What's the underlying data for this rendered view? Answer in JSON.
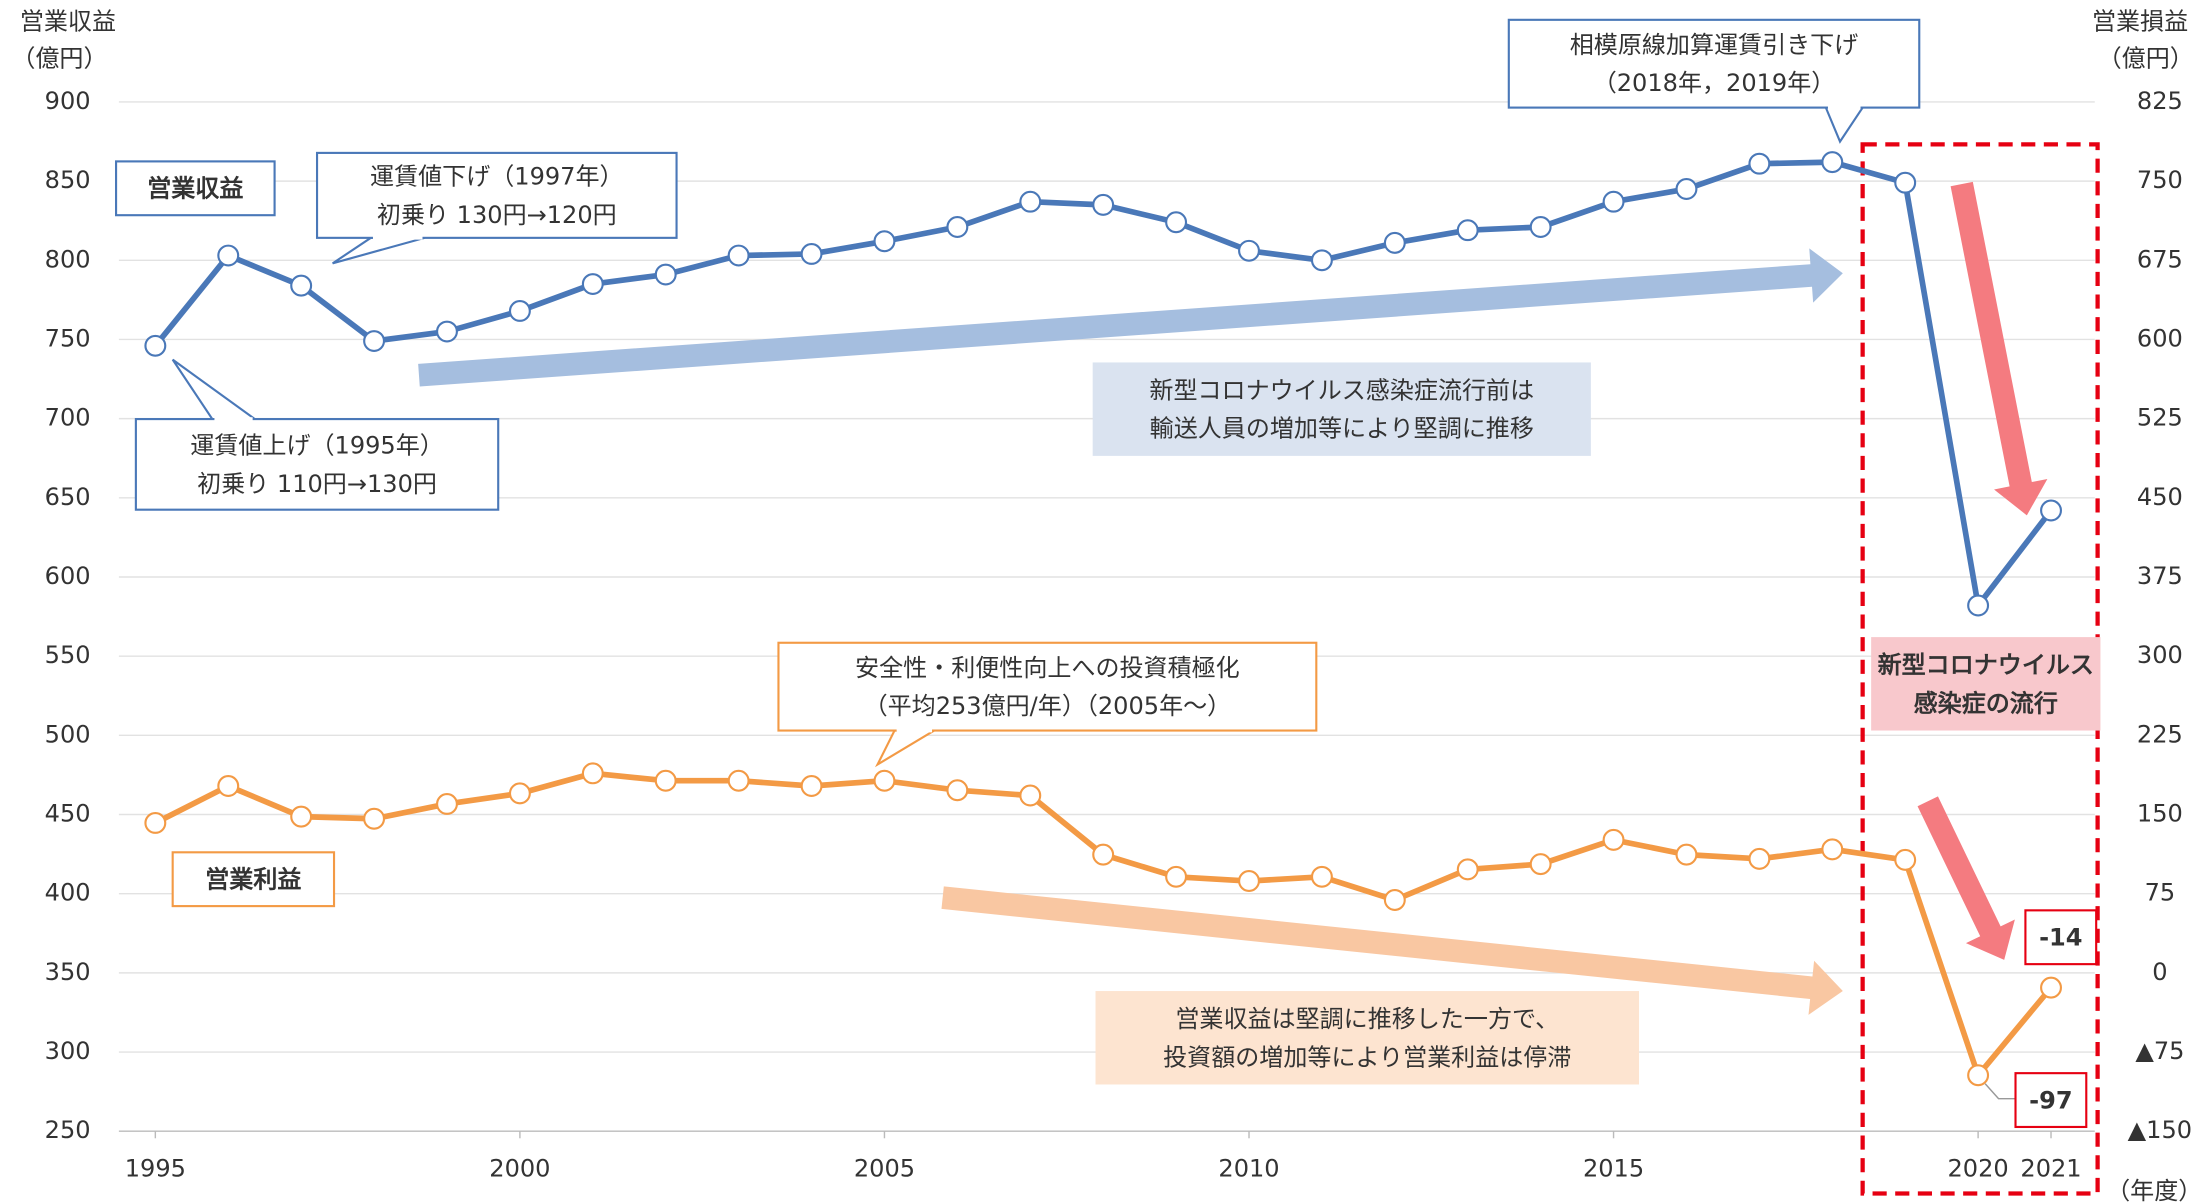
{
  "chart_data": {
    "type": "line",
    "y_label": [
      "営業収益",
      "（億円）"
    ],
    "y2_label": [
      "営業損益",
      "（億円）"
    ],
    "x_label": "（年度）",
    "x": [
      1995,
      1996,
      1997,
      1998,
      1999,
      2000,
      2001,
      2002,
      2003,
      2004,
      2005,
      2006,
      2007,
      2008,
      2009,
      2010,
      2011,
      2012,
      2013,
      2014,
      2015,
      2016,
      2017,
      2018,
      2019,
      2020,
      2021
    ],
    "xlim": [
      1994.5,
      2021.6
    ],
    "xticks": [
      1995,
      2000,
      2005,
      2010,
      2015,
      2020,
      2021
    ],
    "ylim": [
      250,
      900
    ],
    "yticks": [
      250,
      300,
      350,
      400,
      450,
      500,
      550,
      600,
      650,
      700,
      750,
      800,
      850,
      900
    ],
    "y2lim": [
      -150,
      825
    ],
    "y2ticks": [
      {
        "value": -150,
        "label": "▲150"
      },
      {
        "value": -75,
        "label": "▲75"
      },
      0,
      75,
      150,
      225,
      300,
      375,
      450,
      525,
      600,
      675,
      750,
      825
    ],
    "grid": true,
    "series": [
      {
        "name": "営業収益",
        "color": "#4a78b8",
        "axis": "y",
        "values": [
          746,
          803,
          784,
          749,
          755,
          768,
          785,
          791,
          803,
          804,
          812,
          821,
          837,
          835,
          824,
          806,
          800,
          811,
          819,
          821,
          837,
          845,
          861,
          862,
          849,
          582,
          642
        ]
      },
      {
        "name": "営業利益",
        "color": "#f39a45",
        "axis": "y2",
        "values": [
          142,
          177,
          148,
          146,
          160,
          170,
          189,
          182,
          182,
          177,
          182,
          173,
          168,
          112,
          91,
          87,
          91,
          69,
          98,
          103,
          126,
          112,
          108,
          117,
          107,
          -97,
          -14
        ]
      }
    ],
    "annotations": [
      {
        "lines": [
          "運賃値上げ（1995年）",
          "初乗り  110円→130円"
        ]
      },
      {
        "lines": [
          "運賃値下げ（1997年）",
          "初乗り  130円→120円"
        ]
      },
      {
        "lines": [
          "相模原線加算運賃引き下げ",
          "（2018年，2019年）"
        ]
      },
      {
        "lines": [
          "新型コロナウイルス感染症流行前は",
          "輸送人員の増加等により堅調に推移"
        ]
      },
      {
        "lines": [
          "安全性・利便性向上への投資積極化",
          "（平均253億円/年）（2005年～）"
        ]
      },
      {
        "lines": [
          "営業収益は堅調に推移した一方で、",
          "投資額の増加等により営業利益は停滞"
        ]
      },
      {
        "lines": [
          "新型コロナウイルス",
          "感染症の流行"
        ]
      }
    ]
  }
}
